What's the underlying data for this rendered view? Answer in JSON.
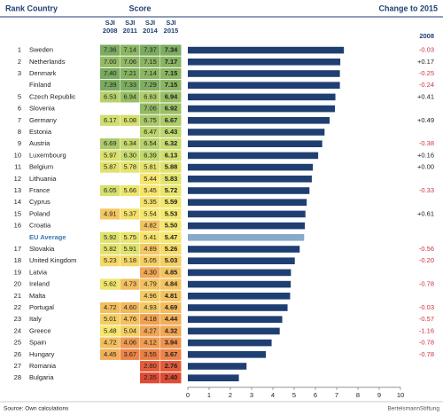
{
  "header": {
    "rank_country": "Rank Country",
    "score": "Score",
    "change": "Change to 2015",
    "change_year": "2008"
  },
  "score_columns": [
    {
      "label": "SJI",
      "year": "2008"
    },
    {
      "label": "SJI",
      "year": "2011"
    },
    {
      "label": "SJI",
      "year": "2014"
    },
    {
      "label": "SJI",
      "year": "2015"
    }
  ],
  "rows": [
    {
      "rank": 1,
      "country": "Sweden",
      "scores": [
        7.36,
        7.14,
        7.37,
        7.34
      ],
      "score_labels": [
        "7.36",
        "7.14",
        "7.37",
        "7.34"
      ],
      "change": "-0.03"
    },
    {
      "rank": 2,
      "country": "Netherlands",
      "scores": [
        7.0,
        7.06,
        7.15,
        7.17
      ],
      "score_labels": [
        "7.00",
        "7.06",
        "7.15",
        "7.17"
      ],
      "change": "+0.17"
    },
    {
      "rank": 3,
      "country": "Denmark",
      "scores": [
        7.4,
        7.21,
        7.14,
        7.15
      ],
      "score_labels": [
        "7.40",
        "7.21",
        "7.14",
        "7.15"
      ],
      "change": "-0.25"
    },
    {
      "rank": null,
      "country": "Finland",
      "scores": [
        7.39,
        7.33,
        7.29,
        7.15
      ],
      "score_labels": [
        "7.39",
        "7.33",
        "7.29",
        "7.15"
      ],
      "change": "-0.24"
    },
    {
      "rank": 5,
      "country": "Czech Republic",
      "scores": [
        6.53,
        6.94,
        6.63,
        6.94
      ],
      "score_labels": [
        "6.53",
        "6.94",
        "6.63",
        "6.94"
      ],
      "change": "+0.41"
    },
    {
      "rank": 6,
      "country": "Slovenia",
      "scores": [
        null,
        null,
        7.06,
        6.92
      ],
      "score_labels": [
        null,
        null,
        "7.06",
        "6.92"
      ],
      "change": null
    },
    {
      "rank": 7,
      "country": "Germany",
      "scores": [
        6.17,
        6.08,
        6.75,
        6.67
      ],
      "score_labels": [
        "6.17",
        "6.08",
        "6.75",
        "6.67"
      ],
      "change": "+0.49"
    },
    {
      "rank": 8,
      "country": "Estonia",
      "scores": [
        null,
        null,
        6.47,
        6.43
      ],
      "score_labels": [
        null,
        null,
        "6.47",
        "6.43"
      ],
      "change": null
    },
    {
      "rank": 9,
      "country": "Austria",
      "scores": [
        6.69,
        6.34,
        6.54,
        6.32
      ],
      "score_labels": [
        "6.69",
        "6.34",
        "6.54",
        "6.32"
      ],
      "change": "-0.38"
    },
    {
      "rank": 10,
      "country": "Luxembourg",
      "scores": [
        5.97,
        6.3,
        6.39,
        6.13
      ],
      "score_labels": [
        "5.97",
        "6.30",
        "6.39",
        "6.13"
      ],
      "change": "+0.16"
    },
    {
      "rank": 11,
      "country": "Belgium",
      "scores": [
        5.87,
        5.78,
        5.81,
        5.88
      ],
      "score_labels": [
        "5.87",
        "5.78",
        "5.81",
        "5.88"
      ],
      "change": "+0.00"
    },
    {
      "rank": 12,
      "country": "Lithuania",
      "scores": [
        null,
        null,
        5.44,
        5.83
      ],
      "score_labels": [
        null,
        null,
        "5.44",
        "5.83"
      ],
      "change": null
    },
    {
      "rank": 13,
      "country": "France",
      "scores": [
        6.05,
        5.66,
        5.45,
        5.72
      ],
      "score_labels": [
        "6.05",
        "5.66",
        "5.45",
        "5.72"
      ],
      "change": "-0.33"
    },
    {
      "rank": 14,
      "country": "Cyprus",
      "scores": [
        null,
        null,
        5.35,
        5.59
      ],
      "score_labels": [
        null,
        null,
        "5.35",
        "5.59"
      ],
      "change": null
    },
    {
      "rank": 15,
      "country": "Poland",
      "scores": [
        4.91,
        5.37,
        5.54,
        5.53
      ],
      "score_labels": [
        "4.91",
        "5.37",
        "5.54",
        "5.53"
      ],
      "change": "+0.61"
    },
    {
      "rank": 16,
      "country": "Croatia",
      "scores": [
        null,
        null,
        4.82,
        5.5
      ],
      "score_labels": [
        null,
        null,
        "4.82",
        "5.50"
      ],
      "change": null
    },
    {
      "rank": null,
      "country": "EU Average",
      "average": true,
      "scores": [
        5.92,
        5.75,
        5.41,
        5.47
      ],
      "score_labels": [
        "5.92",
        "5.75",
        "5.41",
        "5.47"
      ],
      "change": null
    },
    {
      "rank": 17,
      "country": "Slovakia",
      "scores": [
        5.82,
        5.91,
        4.89,
        5.26
      ],
      "score_labels": [
        "5.82",
        "5.91",
        "4.89",
        "5.26"
      ],
      "change": "-0.56"
    },
    {
      "rank": 18,
      "country": "United Kingdom",
      "scores": [
        5.23,
        5.18,
        5.05,
        5.03
      ],
      "score_labels": [
        "5.23",
        "5.18",
        "5.05",
        "5.03"
      ],
      "change": "-0.20"
    },
    {
      "rank": 19,
      "country": "Latvia",
      "scores": [
        null,
        null,
        4.3,
        4.85
      ],
      "score_labels": [
        null,
        null,
        "4.30",
        "4.85"
      ],
      "change": null
    },
    {
      "rank": 20,
      "country": "Ireland",
      "scores": [
        5.62,
        4.73,
        4.79,
        4.84
      ],
      "score_labels": [
        "5.62",
        "4.73",
        "4.79",
        "4.84"
      ],
      "change": "-0.78"
    },
    {
      "rank": 21,
      "country": "Malta",
      "scores": [
        null,
        null,
        4.96,
        4.81
      ],
      "score_labels": [
        null,
        null,
        "4.96",
        "4.81"
      ],
      "change": null
    },
    {
      "rank": 22,
      "country": "Portugal",
      "scores": [
        4.72,
        4.6,
        4.93,
        4.69
      ],
      "score_labels": [
        "4.72",
        "4.60",
        "4.93",
        "4.69"
      ],
      "change": "-0.03"
    },
    {
      "rank": 23,
      "country": "Italy",
      "scores": [
        5.01,
        4.76,
        4.18,
        4.44
      ],
      "score_labels": [
        "5.01",
        "4.76",
        "4.18",
        "4.44"
      ],
      "change": "-0.57"
    },
    {
      "rank": 24,
      "country": "Greece",
      "scores": [
        5.48,
        5.04,
        4.27,
        4.32
      ],
      "score_labels": [
        "5.48",
        "5.04",
        "4.27",
        "4.32"
      ],
      "change": "-1.16"
    },
    {
      "rank": 25,
      "country": "Spain",
      "scores": [
        4.72,
        4.06,
        4.12,
        3.94
      ],
      "score_labels": [
        "4.72",
        "4.06",
        "4.12",
        "3.94"
      ],
      "change": "-0.78"
    },
    {
      "rank": 26,
      "country": "Hungary",
      "scores": [
        4.45,
        3.67,
        3.55,
        3.67
      ],
      "score_labels": [
        "4.45",
        "3.67",
        "3.55",
        "3.67"
      ],
      "change": "-0.78"
    },
    {
      "rank": 27,
      "country": "Romania",
      "scores": [
        null,
        null,
        2.8,
        2.76
      ],
      "score_labels": [
        null,
        null,
        "2.80",
        "2.76"
      ],
      "change": null
    },
    {
      "rank": 28,
      "country": "Bulgaria",
      "scores": [
        null,
        null,
        2.35,
        2.4
      ],
      "score_labels": [
        null,
        null,
        "2.35",
        "2.40"
      ],
      "change": null
    }
  ],
  "chart": {
    "type": "bar",
    "value_column": 3,
    "xlim": [
      0,
      10
    ],
    "xticks": [
      0,
      1,
      2,
      3,
      4,
      5,
      6,
      7,
      8,
      9,
      10
    ],
    "color": "#1f3f73",
    "average_color": "#86a9c9"
  },
  "footer": {
    "source": "Source: Own calculations",
    "brand": "BertelsmannStiftung"
  }
}
